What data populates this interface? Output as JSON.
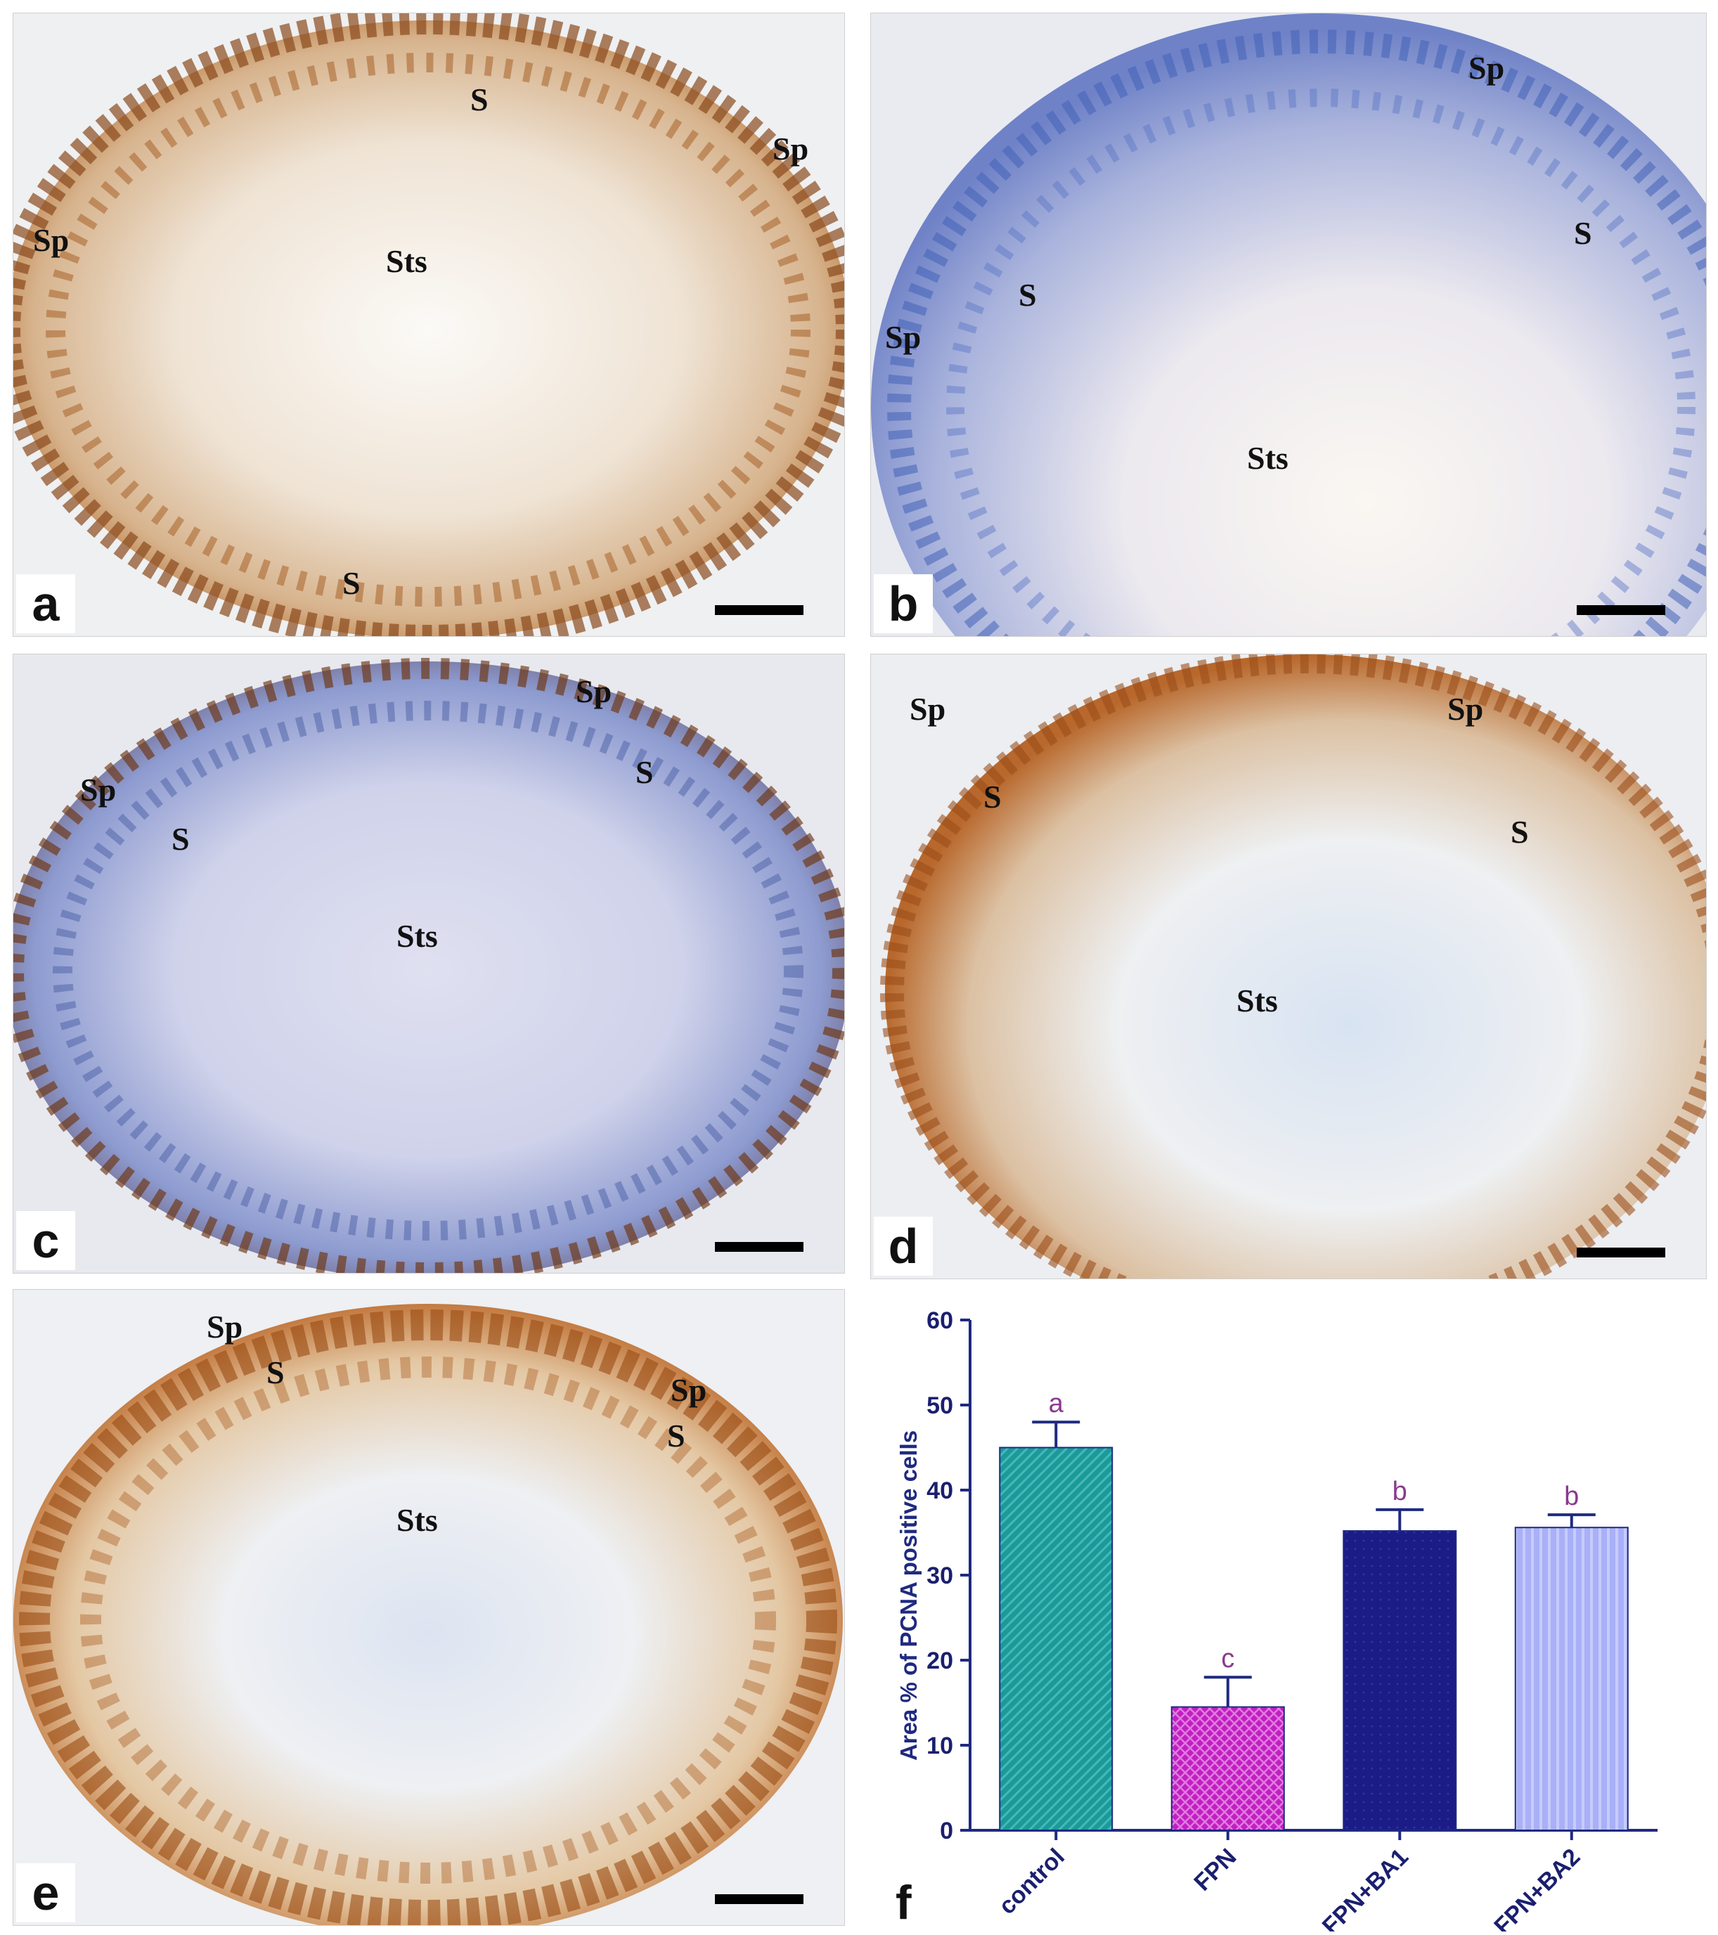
{
  "panels": [
    {
      "id": "a",
      "label": "a",
      "annotations": [
        {
          "text": "S"
        },
        {
          "text": "Sp"
        },
        {
          "text": "Sp"
        },
        {
          "text": "Sts"
        },
        {
          "text": "S"
        }
      ]
    },
    {
      "id": "b",
      "label": "b",
      "annotations": [
        {
          "text": "Sp"
        },
        {
          "text": "S"
        },
        {
          "text": "S"
        },
        {
          "text": "Sp"
        },
        {
          "text": "Sts"
        }
      ]
    },
    {
      "id": "c",
      "label": "c",
      "annotations": [
        {
          "text": "Sp"
        },
        {
          "text": "Sp"
        },
        {
          "text": "S"
        },
        {
          "text": "S"
        },
        {
          "text": "Sts"
        }
      ]
    },
    {
      "id": "d",
      "label": "d",
      "annotations": [
        {
          "text": "Sp"
        },
        {
          "text": "Sp"
        },
        {
          "text": "S"
        },
        {
          "text": "S"
        },
        {
          "text": "Sts"
        }
      ]
    },
    {
      "id": "e",
      "label": "e",
      "annotations": [
        {
          "text": "Sp"
        },
        {
          "text": "S"
        },
        {
          "text": "Sp"
        },
        {
          "text": "S"
        },
        {
          "text": "Sts"
        }
      ]
    }
  ],
  "chart_panel_label": "f",
  "chart_data": {
    "type": "bar",
    "categories": [
      "control",
      "FPN",
      "FPN+BA1",
      "FPN+BA2"
    ],
    "values": [
      45,
      14.5,
      35.2,
      35.6
    ],
    "errors": [
      3,
      3.5,
      2.5,
      1.5
    ],
    "significance_letters": [
      "a",
      "c",
      "b",
      "b"
    ],
    "ylabel": "Area % of PCNA positive cells",
    "xlabel": "",
    "ylim": [
      0,
      60
    ],
    "yticks": [
      0,
      10,
      20,
      30,
      40,
      50,
      60
    ],
    "colors": [
      "#1b9a9a",
      "#c21fc2",
      "#1c1c86",
      "#a9b0f7"
    ],
    "axis_color": "#1f2a80",
    "letter_color": "#8a3a8f",
    "grid": false
  }
}
